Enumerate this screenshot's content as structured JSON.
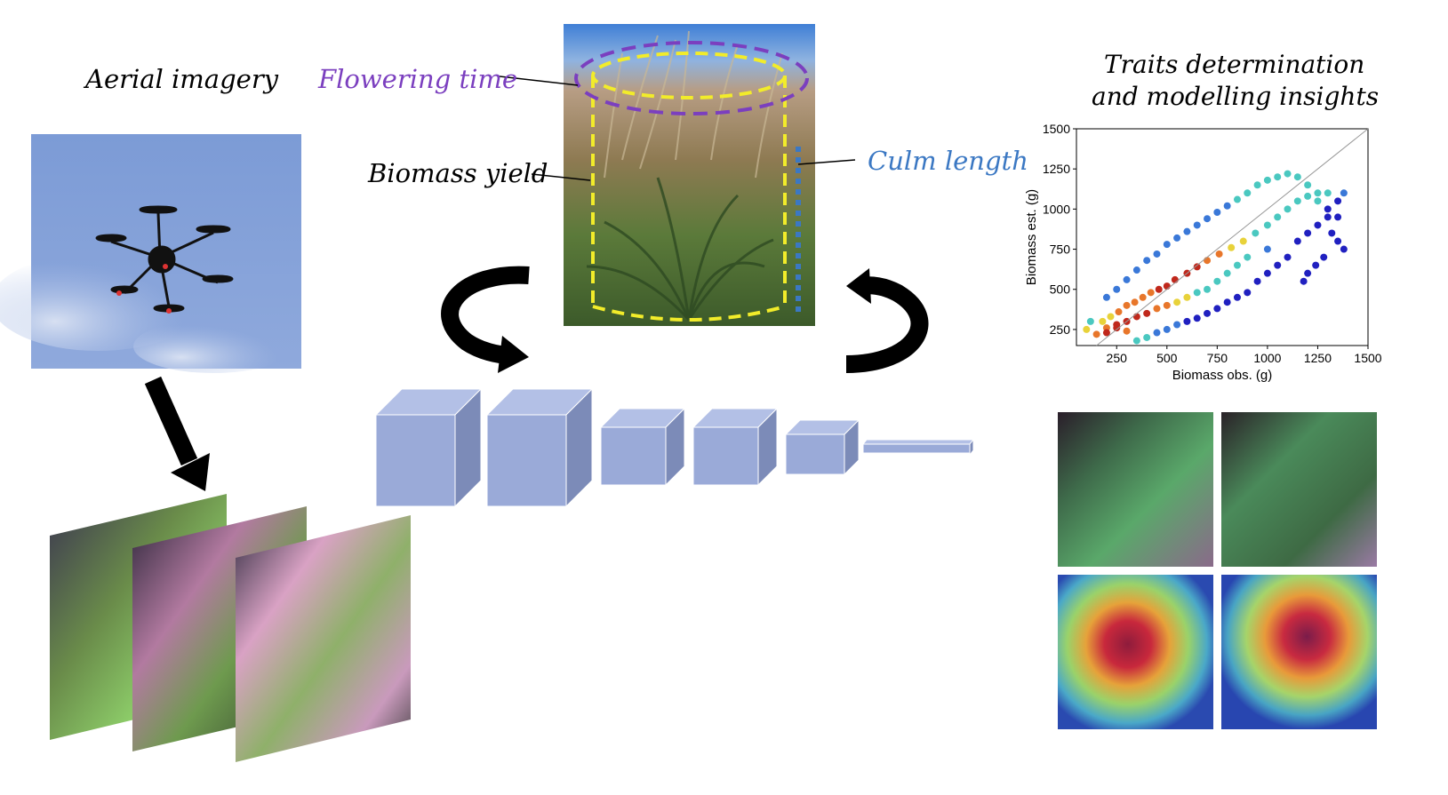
{
  "labels": {
    "aerial_imagery": "Aerial imagery",
    "flowering_time": "Flowering time",
    "biomass_yield": "Biomass yield",
    "culm_length": "Culm length",
    "traits_line1": "Traits determination",
    "traits_line2": "and modelling insights"
  },
  "colors": {
    "flowering": "#7b3fbf",
    "culm": "#3b78c3",
    "cnn_block": "#9aaad8",
    "arrow": "#000000",
    "cylinder": "#f2ec2a"
  },
  "icons": {
    "drone": "drone-icon",
    "cnn": "cnn-layers",
    "arrows": "curved-arrow-icon"
  },
  "cnn_layers": [
    {
      "name": "conv-block-1",
      "relative_size": 1.0
    },
    {
      "name": "conv-block-2",
      "relative_size": 1.0
    },
    {
      "name": "conv-block-3",
      "relative_size": 0.72
    },
    {
      "name": "conv-block-4",
      "relative_size": 0.72
    },
    {
      "name": "conv-block-5",
      "relative_size": 0.5
    },
    {
      "name": "dense-layer",
      "relative_size": 0.15
    }
  ],
  "chart_data": {
    "type": "scatter",
    "xlabel": "Biomass obs. (g)",
    "ylabel": "Biomass est. (g)",
    "xlim": [
      50,
      1500
    ],
    "ylim": [
      150,
      1500
    ],
    "x_ticks": [
      250,
      500,
      750,
      1000,
      1250,
      1500
    ],
    "y_ticks": [
      250,
      500,
      750,
      1000,
      1250,
      1500
    ],
    "x_tick_labels": [
      "250",
      "500",
      "750",
      "1000",
      "1250",
      "1500"
    ],
    "y_tick_labels": [
      "250",
      "500",
      "750",
      "1000",
      "1250",
      "1500"
    ],
    "identity_line": true,
    "colormap": "density (blue low → red high)",
    "points": [
      [
        180,
        300
      ],
      [
        220,
        330
      ],
      [
        260,
        360
      ],
      [
        300,
        400
      ],
      [
        340,
        420
      ],
      [
        380,
        450
      ],
      [
        420,
        480
      ],
      [
        460,
        500
      ],
      [
        500,
        520
      ],
      [
        540,
        560
      ],
      [
        600,
        600
      ],
      [
        650,
        640
      ],
      [
        700,
        680
      ],
      [
        760,
        720
      ],
      [
        820,
        760
      ],
      [
        880,
        800
      ],
      [
        940,
        850
      ],
      [
        1000,
        900
      ],
      [
        1050,
        950
      ],
      [
        1100,
        1000
      ],
      [
        1150,
        1050
      ],
      [
        1200,
        1080
      ],
      [
        1250,
        1100
      ],
      [
        1300,
        1100
      ],
      [
        1350,
        1050
      ],
      [
        1380,
        1100
      ],
      [
        1300,
        950
      ],
      [
        1250,
        900
      ],
      [
        1200,
        850
      ],
      [
        1150,
        800
      ],
      [
        1100,
        700
      ],
      [
        1050,
        650
      ],
      [
        1000,
        600
      ],
      [
        950,
        550
      ],
      [
        900,
        480
      ],
      [
        850,
        450
      ],
      [
        800,
        420
      ],
      [
        750,
        380
      ],
      [
        700,
        350
      ],
      [
        650,
        320
      ],
      [
        600,
        300
      ],
      [
        550,
        280
      ],
      [
        500,
        250
      ],
      [
        450,
        230
      ],
      [
        400,
        200
      ],
      [
        350,
        180
      ],
      [
        300,
        240
      ],
      [
        250,
        280
      ],
      [
        200,
        260
      ],
      [
        150,
        220
      ],
      [
        120,
        300
      ],
      [
        100,
        250
      ],
      [
        200,
        450
      ],
      [
        250,
        500
      ],
      [
        300,
        560
      ],
      [
        350,
        620
      ],
      [
        400,
        680
      ],
      [
        450,
        720
      ],
      [
        500,
        780
      ],
      [
        550,
        820
      ],
      [
        600,
        860
      ],
      [
        650,
        900
      ],
      [
        700,
        940
      ],
      [
        750,
        980
      ],
      [
        800,
        1020
      ],
      [
        850,
        1060
      ],
      [
        900,
        1100
      ],
      [
        950,
        1150
      ],
      [
        1000,
        1180
      ],
      [
        1050,
        1200
      ],
      [
        1100,
        1220
      ],
      [
        1150,
        1200
      ],
      [
        1200,
        1150
      ],
      [
        1250,
        1050
      ],
      [
        1300,
        1000
      ],
      [
        1350,
        950
      ],
      [
        1380,
        750
      ],
      [
        1350,
        800
      ],
      [
        1320,
        850
      ],
      [
        1280,
        700
      ],
      [
        1240,
        650
      ],
      [
        1200,
        600
      ],
      [
        1180,
        550
      ],
      [
        1000,
        750
      ],
      [
        900,
        700
      ],
      [
        850,
        650
      ],
      [
        800,
        600
      ],
      [
        750,
        550
      ],
      [
        700,
        500
      ],
      [
        650,
        480
      ],
      [
        600,
        450
      ],
      [
        550,
        420
      ],
      [
        500,
        400
      ],
      [
        450,
        380
      ],
      [
        400,
        350
      ],
      [
        350,
        330
      ],
      [
        300,
        300
      ],
      [
        250,
        260
      ],
      [
        200,
        230
      ]
    ]
  }
}
